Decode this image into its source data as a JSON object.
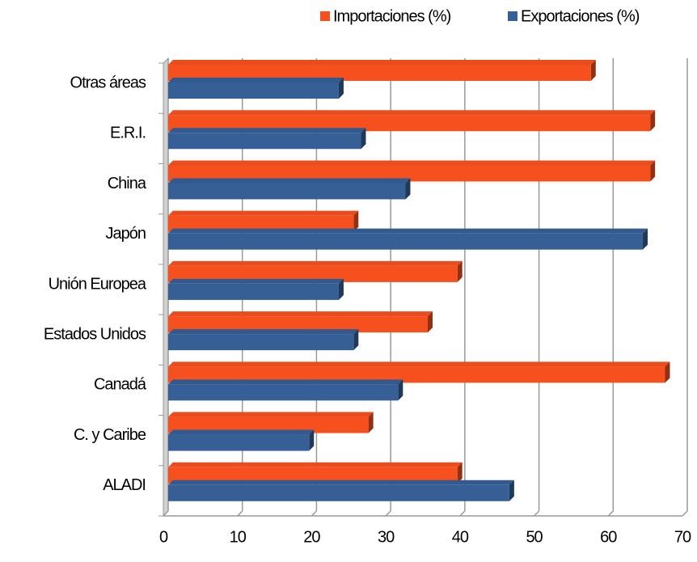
{
  "chart_data": {
    "type": "barh",
    "categories": [
      "ALADI",
      "C. y Caribe",
      "Canadá",
      "Estados Unidos",
      "Unión Europea",
      "Japón",
      "China",
      "E.R.I.",
      "Otras áreas"
    ],
    "series": [
      {
        "name": "Importaciones (%)",
        "color": "#f5501e",
        "values": [
          39,
          27,
          67,
          35,
          39,
          25,
          65,
          65,
          57
        ]
      },
      {
        "name": "Exportaciones (%)",
        "color": "#355f95",
        "values": [
          46,
          19,
          31,
          25,
          23,
          64,
          32,
          26,
          23
        ]
      }
    ],
    "xlim": [
      0,
      70
    ],
    "xticks": [
      0,
      10,
      20,
      30,
      40,
      50,
      60,
      70
    ],
    "grid": true,
    "legend": "top"
  }
}
